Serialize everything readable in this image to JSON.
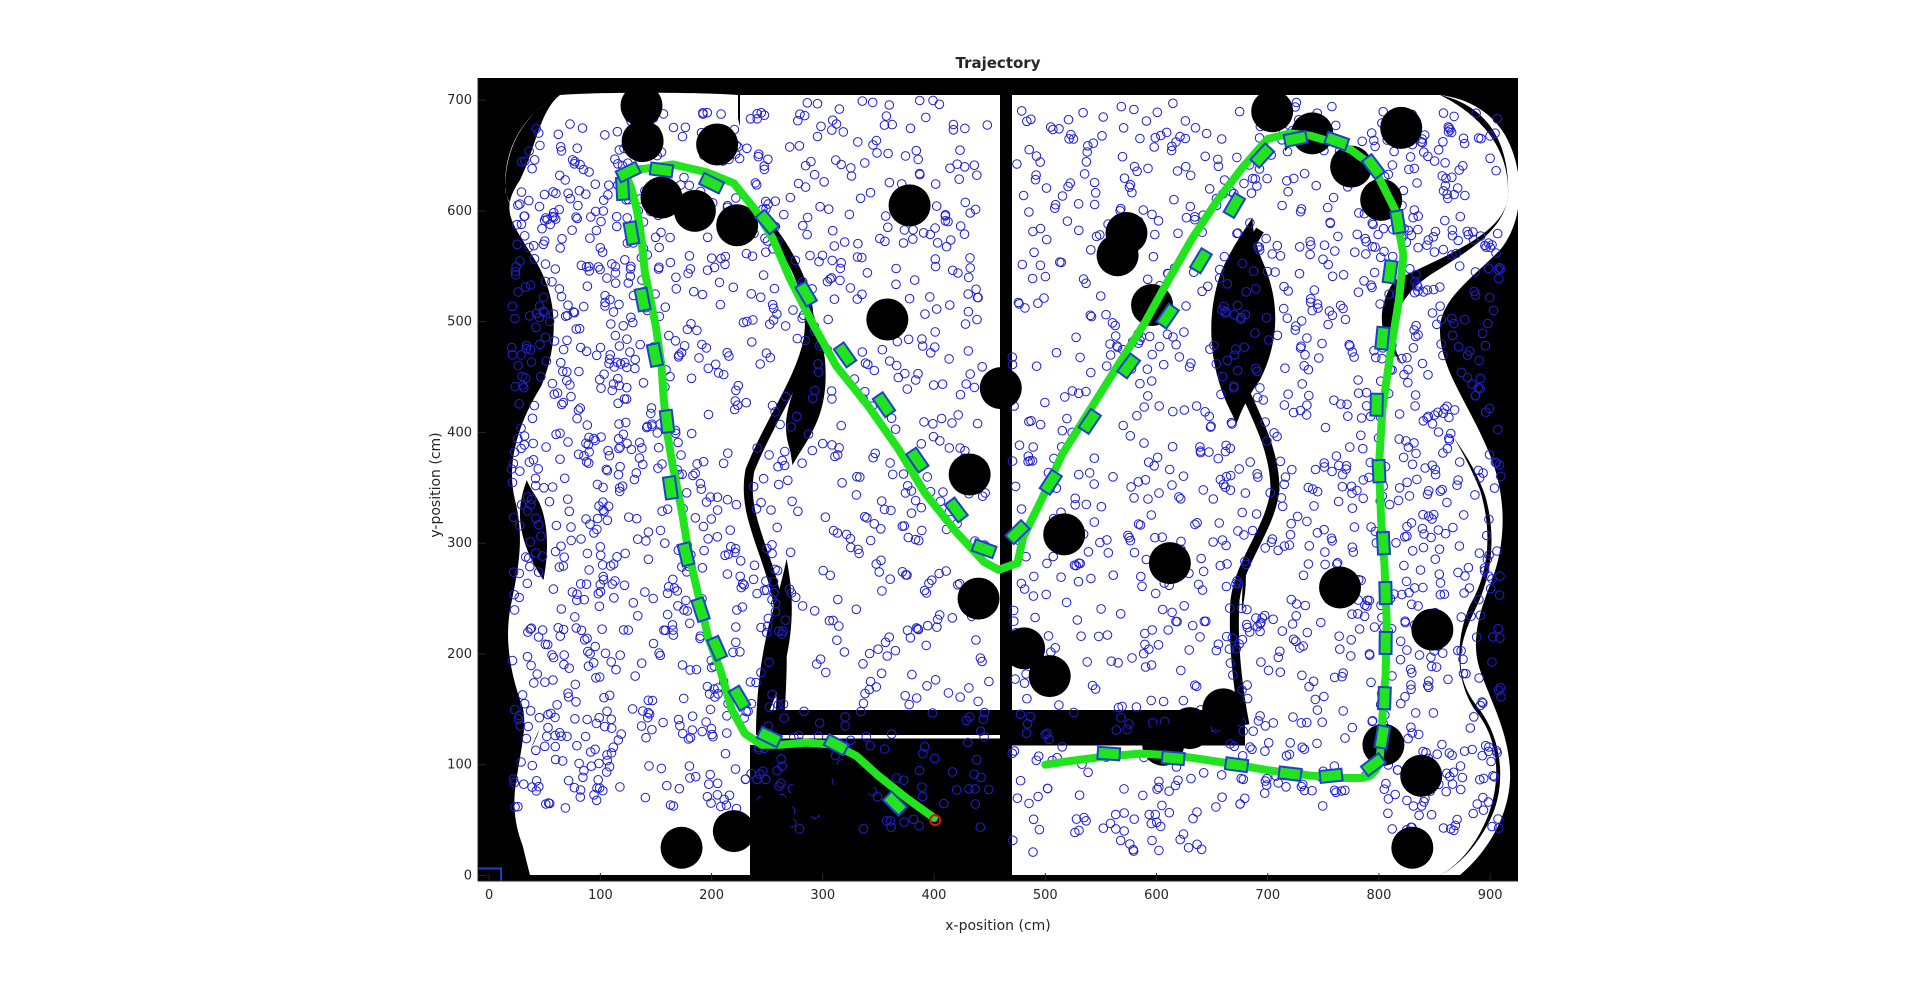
{
  "chart_data": {
    "type": "scatter",
    "title": "Trajectory",
    "xlabel": "x-position (cm)",
    "ylabel": "y-position (cm)",
    "xlim": [
      -10,
      925
    ],
    "ylim": [
      -5,
      720
    ],
    "xticks": [
      0,
      100,
      200,
      300,
      400,
      500,
      600,
      700,
      800,
      900
    ],
    "yticks": [
      0,
      100,
      200,
      300,
      400,
      500,
      600,
      700
    ],
    "grid": false,
    "legend": "none",
    "colors": {
      "map_background": "#000000",
      "free_space": "#ffffff",
      "particles": "#1f1fd6",
      "trajectory": "#22e41e",
      "pose_boxes": "#1f3fcf",
      "obstacles": "#000000",
      "start_marker": "#e01010"
    },
    "trajectory": {
      "x": [
        400,
        375,
        350,
        330,
        310,
        285,
        262,
        245,
        230,
        218,
        208,
        197,
        190,
        183,
        178,
        173,
        165,
        160,
        157,
        155,
        150,
        145,
        140,
        137,
        133,
        128,
        124,
        122,
        125,
        140,
        165,
        195,
        220,
        240,
        255,
        270,
        290,
        312,
        340,
        368,
        392,
        420,
        445,
        458,
        475,
        480,
        497,
        515,
        540,
        565,
        590,
        612,
        632,
        655,
        678,
        700,
        720,
        738,
        755,
        775,
        795,
        815,
        822,
        818,
        810,
        803,
        800,
        802,
        805,
        807,
        806,
        804,
        802,
        800,
        797,
        792,
        785,
        770,
        740,
        700,
        660,
        620,
        585,
        550,
        520,
        500
      ],
      "y": [
        52,
        70,
        90,
        108,
        118,
        120,
        118,
        118,
        128,
        150,
        185,
        215,
        245,
        275,
        300,
        330,
        370,
        400,
        430,
        460,
        495,
        520,
        545,
        575,
        600,
        620,
        630,
        635,
        637,
        638,
        642,
        635,
        625,
        600,
        575,
        540,
        500,
        460,
        425,
        385,
        345,
        310,
        283,
        276,
        282,
        305,
        340,
        380,
        420,
        460,
        500,
        540,
        575,
        610,
        640,
        665,
        670,
        668,
        663,
        655,
        640,
        600,
        560,
        520,
        470,
        420,
        370,
        320,
        280,
        230,
        180,
        160,
        120,
        100,
        95,
        90,
        88,
        88,
        90,
        95,
        102,
        108,
        110,
        107,
        103,
        100
      ]
    },
    "pose_boxes": {
      "x": [
        365,
        312,
        252,
        225,
        205,
        190,
        177,
        163,
        160,
        149,
        138,
        128,
        120,
        125,
        155,
        200,
        250,
        285,
        320,
        355,
        385,
        420,
        445,
        475,
        505,
        540,
        575,
        610,
        640,
        670,
        695,
        725,
        762,
        795,
        817,
        810,
        803,
        798,
        800,
        804,
        806,
        806,
        805,
        803,
        795,
        757,
        720,
        672,
        615,
        557
      ],
      "y": [
        65,
        118,
        125,
        160,
        205,
        240,
        290,
        350,
        410,
        470,
        520,
        580,
        620,
        635,
        637,
        625,
        590,
        525,
        470,
        425,
        375,
        330,
        295,
        310,
        355,
        410,
        460,
        505,
        555,
        605,
        650,
        665,
        663,
        640,
        590,
        545,
        485,
        425,
        365,
        300,
        255,
        210,
        160,
        125,
        100,
        90,
        92,
        100,
        106,
        110
      ]
    },
    "obstacles": {
      "x": [
        137,
        138,
        155,
        185,
        223,
        205,
        378,
        358,
        432,
        440,
        517,
        612,
        460,
        481,
        504,
        596,
        848,
        704,
        740,
        775,
        802,
        820,
        765,
        804,
        838,
        830,
        660,
        630,
        606,
        573,
        565,
        328,
        290,
        255,
        220,
        173
      ],
      "y": [
        695,
        663,
        612,
        600,
        587,
        660,
        605,
        502,
        362,
        250,
        308,
        282,
        440,
        205,
        180,
        515,
        222,
        690,
        670,
        640,
        610,
        675,
        260,
        118,
        90,
        25,
        150,
        133,
        118,
        580,
        560,
        88,
        73,
        55,
        40,
        25
      ]
    },
    "start_marker": {
      "x": 401,
      "y": 50
    },
    "origin_box": {
      "x": 0,
      "y": 0
    }
  }
}
